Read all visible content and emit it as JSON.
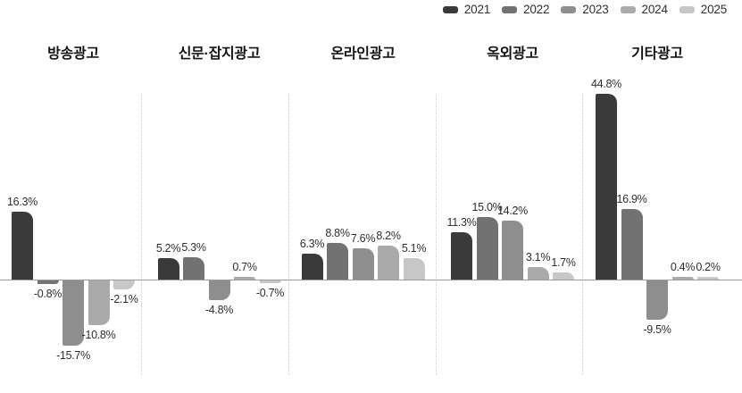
{
  "legend": {
    "items": [
      {
        "label": "2021",
        "color": "#3a3a3a"
      },
      {
        "label": "2022",
        "color": "#727272"
      },
      {
        "label": "2023",
        "color": "#8e8e8e"
      },
      {
        "label": "2024",
        "color": "#aaaaaa"
      },
      {
        "label": "2025",
        "color": "#c7c7c7"
      }
    ]
  },
  "chart_data": {
    "type": "bar",
    "title": "",
    "unit": "%",
    "series": [
      "2021",
      "2022",
      "2023",
      "2024",
      "2025"
    ],
    "series_colors": [
      "#3a3a3a",
      "#727272",
      "#8e8e8e",
      "#aaaaaa",
      "#c7c7c7"
    ],
    "legend_position": "top-right",
    "baseline_value": 0,
    "grid": false,
    "group_separators": "dotted-vertical",
    "groups": [
      {
        "category": "방송광고",
        "values": [
          16.3,
          -0.8,
          -15.7,
          -10.8,
          -2.1
        ],
        "value_labels": [
          "16.3%",
          "-0.8%",
          "-15.7%",
          "-10.8%",
          "-2.1%"
        ]
      },
      {
        "category": "신문·잡지광고",
        "values": [
          5.2,
          5.3,
          -4.8,
          0.7,
          -0.7
        ],
        "value_labels": [
          "5.2%",
          "5.3%",
          "-4.8%",
          "0.7%",
          "-0.7%"
        ]
      },
      {
        "category": "온라인광고",
        "values": [
          6.3,
          8.8,
          7.6,
          8.2,
          5.1
        ],
        "value_labels": [
          "6.3%",
          "8.8%",
          "7.6%",
          "8.2%",
          "5.1%"
        ]
      },
      {
        "category": "옥외광고",
        "values": [
          11.3,
          15.0,
          14.2,
          3.1,
          1.7
        ],
        "value_labels": [
          "11.3%",
          "15.0%",
          "14.2%",
          "3.1%",
          "1.7%"
        ]
      },
      {
        "category": "기타광고",
        "values": [
          44.8,
          16.9,
          -9.5,
          0.4,
          0.2
        ],
        "value_labels": [
          "44.8%",
          "16.9%",
          "-9.5%",
          "0.4%",
          "0.2%"
        ]
      }
    ]
  }
}
